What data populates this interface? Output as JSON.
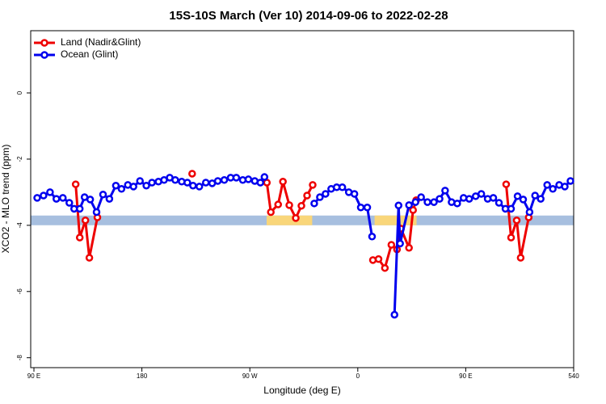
{
  "chart_data": {
    "type": "line",
    "title": "15S-10S March (Ver 10)   2014-09-06 to 2022-02-28",
    "xlabel": "Longitude (deg E)",
    "ylabel": "XCO2 - MLO trend (ppm)",
    "xlim": [
      87.3,
      540
    ],
    "ylim": [
      -8.3,
      1.88
    ],
    "xticks": [
      {
        "value": 90,
        "label": "90 E"
      },
      180,
      {
        "value": 270,
        "label": "90 W"
      },
      {
        "value": 360,
        "label": "0"
      },
      {
        "value": 450,
        "label": "90 E"
      },
      540
    ],
    "yticks": [
      0,
      -2,
      -4,
      -6,
      -8
    ],
    "legend": "top-left",
    "band": {
      "y": -3.85,
      "color": "#a7bfdf",
      "highlight_color": "#f9d67a",
      "highlights": [
        [
          284,
          322
        ],
        [
          374,
          409
        ]
      ]
    },
    "series": [
      {
        "name": "Land (Nadir&Glint)",
        "color": "#ee0000",
        "x": [
          124.8,
          128.2,
          132.9,
          136.2,
          142.9,
          180,
          221.9,
          260,
          284.2,
          287.5,
          293.6,
          297.6,
          302.9,
          308.3,
          313,
          317.7,
          322.4,
          340,
          372.6,
          377.3,
          382.6,
          388,
          392.7,
          396,
          402.7,
          406.1,
          408.7,
          460,
          483.7,
          487.8,
          492.5,
          495.8,
          502.5
        ],
        "values": [
          -2.76,
          -4.37,
          -3.85,
          -4.98,
          -3.76,
          null,
          -2.44,
          null,
          -2.71,
          -3.6,
          -3.37,
          -2.68,
          -3.39,
          -3.78,
          -3.41,
          -3.1,
          -2.78,
          null,
          -5.05,
          -5.02,
          -5.29,
          -4.59,
          -4.73,
          -4.1,
          -4.68,
          -3.54,
          -3.24,
          null,
          -2.76,
          -4.37,
          -3.85,
          -4.98,
          -3.76
        ]
      },
      {
        "name": "Ocean (Glint)",
        "color": "#0000ee",
        "x": [
          92.7,
          98,
          103.4,
          108.7,
          114.1,
          119.5,
          123.5,
          128.2,
          132.2,
          136.9,
          142.2,
          147.6,
          152.9,
          158.3,
          163,
          168.3,
          173,
          178.4,
          183.7,
          188.4,
          193.8,
          198.5,
          203.2,
          207.8,
          213.2,
          217.9,
          222.6,
          227.9,
          233.3,
          238.6,
          243.3,
          248.7,
          254,
          258.7,
          264.1,
          268.8,
          274.1,
          278.8,
          282.2,
          300,
          323.7,
          328.4,
          333.1,
          337.8,
          342.4,
          347.1,
          352.5,
          357.2,
          362.5,
          367.9,
          371.9,
          376,
          390.6,
          394,
          395.3,
          402.7,
          408.1,
          412.8,
          418.1,
          423.5,
          428.2,
          432.8,
          438.2,
          442.9,
          448.2,
          452.9,
          458.3,
          463,
          468.3,
          473,
          477.7,
          483.1,
          487.8,
          493.2,
          497.9,
          503.2,
          507.8,
          512.5,
          517.9,
          522.6,
          527.9,
          532.6,
          537.3
        ],
        "values": [
          -3.17,
          -3.1,
          -3.0,
          -3.2,
          -3.17,
          -3.32,
          -3.5,
          -3.5,
          -3.15,
          -3.22,
          -3.6,
          -3.07,
          -3.2,
          -2.8,
          -2.9,
          -2.78,
          -2.83,
          -2.66,
          -2.8,
          -2.71,
          -2.68,
          -2.63,
          -2.56,
          -2.63,
          -2.68,
          -2.71,
          -2.8,
          -2.83,
          -2.71,
          -2.73,
          -2.66,
          -2.63,
          -2.56,
          -2.56,
          -2.63,
          -2.61,
          -2.66,
          -2.71,
          -2.54,
          null,
          -3.34,
          -3.15,
          -3.05,
          -2.9,
          -2.85,
          -2.85,
          -3.0,
          -3.05,
          -3.46,
          -3.46,
          -4.34,
          null,
          -6.7,
          -3.4,
          -4.55,
          -3.39,
          -3.3,
          -3.15,
          -3.3,
          -3.3,
          -3.2,
          -2.95,
          -3.3,
          -3.34,
          -3.17,
          -3.2,
          -3.12,
          -3.05,
          -3.2,
          -3.17,
          -3.32,
          -3.5,
          -3.5,
          -3.12,
          -3.22,
          -3.6,
          -3.1,
          -3.2,
          -2.78,
          -2.9,
          -2.78,
          -2.83,
          -2.66
        ]
      }
    ]
  }
}
